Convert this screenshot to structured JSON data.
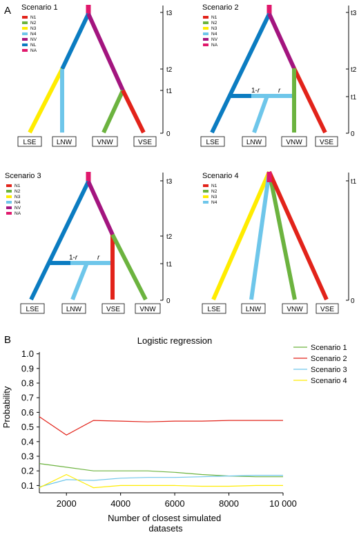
{
  "panelA": {
    "letter": "A",
    "scenarios": [
      {
        "title": "Scenario 1",
        "legend": [
          {
            "label": "N1",
            "color": "#e2231a"
          },
          {
            "label": "N2",
            "color": "#6cb33f"
          },
          {
            "label": "N3",
            "color": "#ffec00"
          },
          {
            "label": "N4",
            "color": "#6ec6ea"
          },
          {
            "label": "NV",
            "color": "#a3157f"
          },
          {
            "label": "NL",
            "color": "#0b7cc1"
          },
          {
            "label": "NA",
            "color": "#e0186c"
          }
        ],
        "times": [
          "t3",
          "t2",
          "t1",
          "0"
        ],
        "leaves": [
          "LSE",
          "LNW",
          "VNW",
          "VSE"
        ],
        "admixture": null
      },
      {
        "title": "Scenario 2",
        "legend": [
          {
            "label": "N1",
            "color": "#e2231a"
          },
          {
            "label": "N2",
            "color": "#6cb33f"
          },
          {
            "label": "N3",
            "color": "#ffec00"
          },
          {
            "label": "N4",
            "color": "#6ec6ea"
          },
          {
            "label": "NV",
            "color": "#a3157f"
          },
          {
            "label": "NA",
            "color": "#e0186c"
          }
        ],
        "times": [
          "t3",
          "t2",
          "t1",
          "0"
        ],
        "leaves": [
          "LSE",
          "LNW",
          "VNW",
          "VSE"
        ],
        "admixture": {
          "left": "1-r",
          "right": "r"
        }
      },
      {
        "title": "Scenario 3",
        "legend": [
          {
            "label": "N1",
            "color": "#e2231a"
          },
          {
            "label": "N2",
            "color": "#6cb33f"
          },
          {
            "label": "N3",
            "color": "#ffec00"
          },
          {
            "label": "N4",
            "color": "#6ec6ea"
          },
          {
            "label": "NV",
            "color": "#a3157f"
          },
          {
            "label": "NA",
            "color": "#e0186c"
          }
        ],
        "times": [
          "t3",
          "t2",
          "t1",
          "0"
        ],
        "leaves": [
          "LSE",
          "LNW",
          "VSE",
          "VNW"
        ],
        "admixture": {
          "left": "1-r",
          "right": "r"
        }
      },
      {
        "title": "Scenario 4",
        "legend": [
          {
            "label": "N1",
            "color": "#e2231a"
          },
          {
            "label": "N2",
            "color": "#6cb33f"
          },
          {
            "label": "N3",
            "color": "#ffec00"
          },
          {
            "label": "N4",
            "color": "#6ec6ea"
          }
        ],
        "times": [
          "t1",
          "0"
        ],
        "leaves": [
          "LSE",
          "LNW",
          "VNW",
          "VSE"
        ],
        "admixture": null
      }
    ]
  },
  "panelB": {
    "letter": "B"
  },
  "chart_data": {
    "type": "line",
    "title": "Logistic regression",
    "xlabel": "Number of closest simulated datasets",
    "ylabel": "Probability",
    "xlim": [
      1000,
      10000
    ],
    "ylim": [
      0.05,
      1.05
    ],
    "xticks": [
      2000,
      4000,
      6000,
      8000,
      10000
    ],
    "xtick_labels": [
      "2000",
      "4000",
      "6000",
      "8000",
      "10 000"
    ],
    "yticks": [
      0.1,
      0.2,
      0.3,
      0.4,
      0.5,
      0.6,
      0.7,
      0.8,
      0.9,
      1.0
    ],
    "ytick_labels": [
      "0.1",
      "0.2",
      "0.3",
      "0.4",
      "0.5",
      "0.6",
      "0.7",
      "0.8",
      "0.9",
      "1.0"
    ],
    "x": [
      1000,
      2000,
      3000,
      4000,
      5000,
      6000,
      7000,
      8000,
      9000,
      10000
    ],
    "series": [
      {
        "name": "Scenario 1",
        "color": "#6cb33f",
        "values": [
          0.25,
          0.225,
          0.2,
          0.2,
          0.2,
          0.19,
          0.175,
          0.165,
          0.16,
          0.16
        ]
      },
      {
        "name": "Scenario 2",
        "color": "#e2231a",
        "values": [
          0.57,
          0.445,
          0.545,
          0.54,
          0.535,
          0.54,
          0.54,
          0.545,
          0.545,
          0.545
        ]
      },
      {
        "name": "Scenario 3",
        "color": "#6ec6ea",
        "values": [
          0.09,
          0.14,
          0.135,
          0.15,
          0.155,
          0.155,
          0.16,
          0.165,
          0.17,
          0.17
        ]
      },
      {
        "name": "Scenario 4",
        "color": "#ffec00",
        "values": [
          0.085,
          0.175,
          0.085,
          0.1,
          0.1,
          0.1,
          0.095,
          0.095,
          0.1,
          0.1
        ]
      }
    ],
    "legend_position": "top-right"
  }
}
